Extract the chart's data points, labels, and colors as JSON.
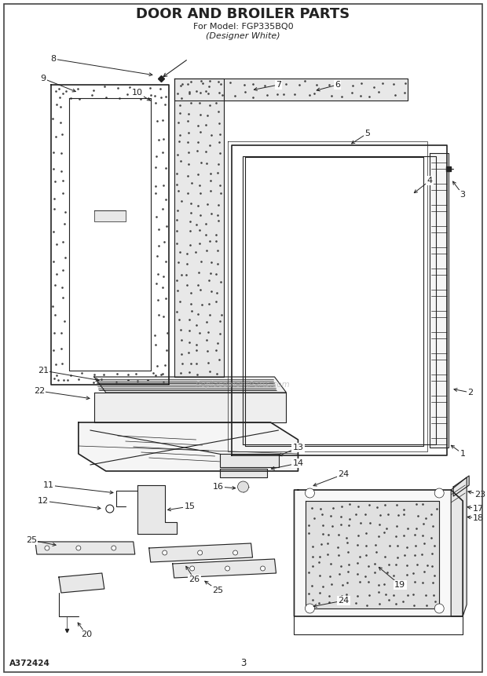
{
  "title_line1": "DOOR AND BROILER PARTS",
  "title_line2": "For Model: FGP335BQ0",
  "title_line3": "(Designer White)",
  "footer_left": "A372424",
  "footer_center": "3",
  "bg_color": "#ffffff",
  "lc": "#222222",
  "watermark": "ReplacementParts.com"
}
